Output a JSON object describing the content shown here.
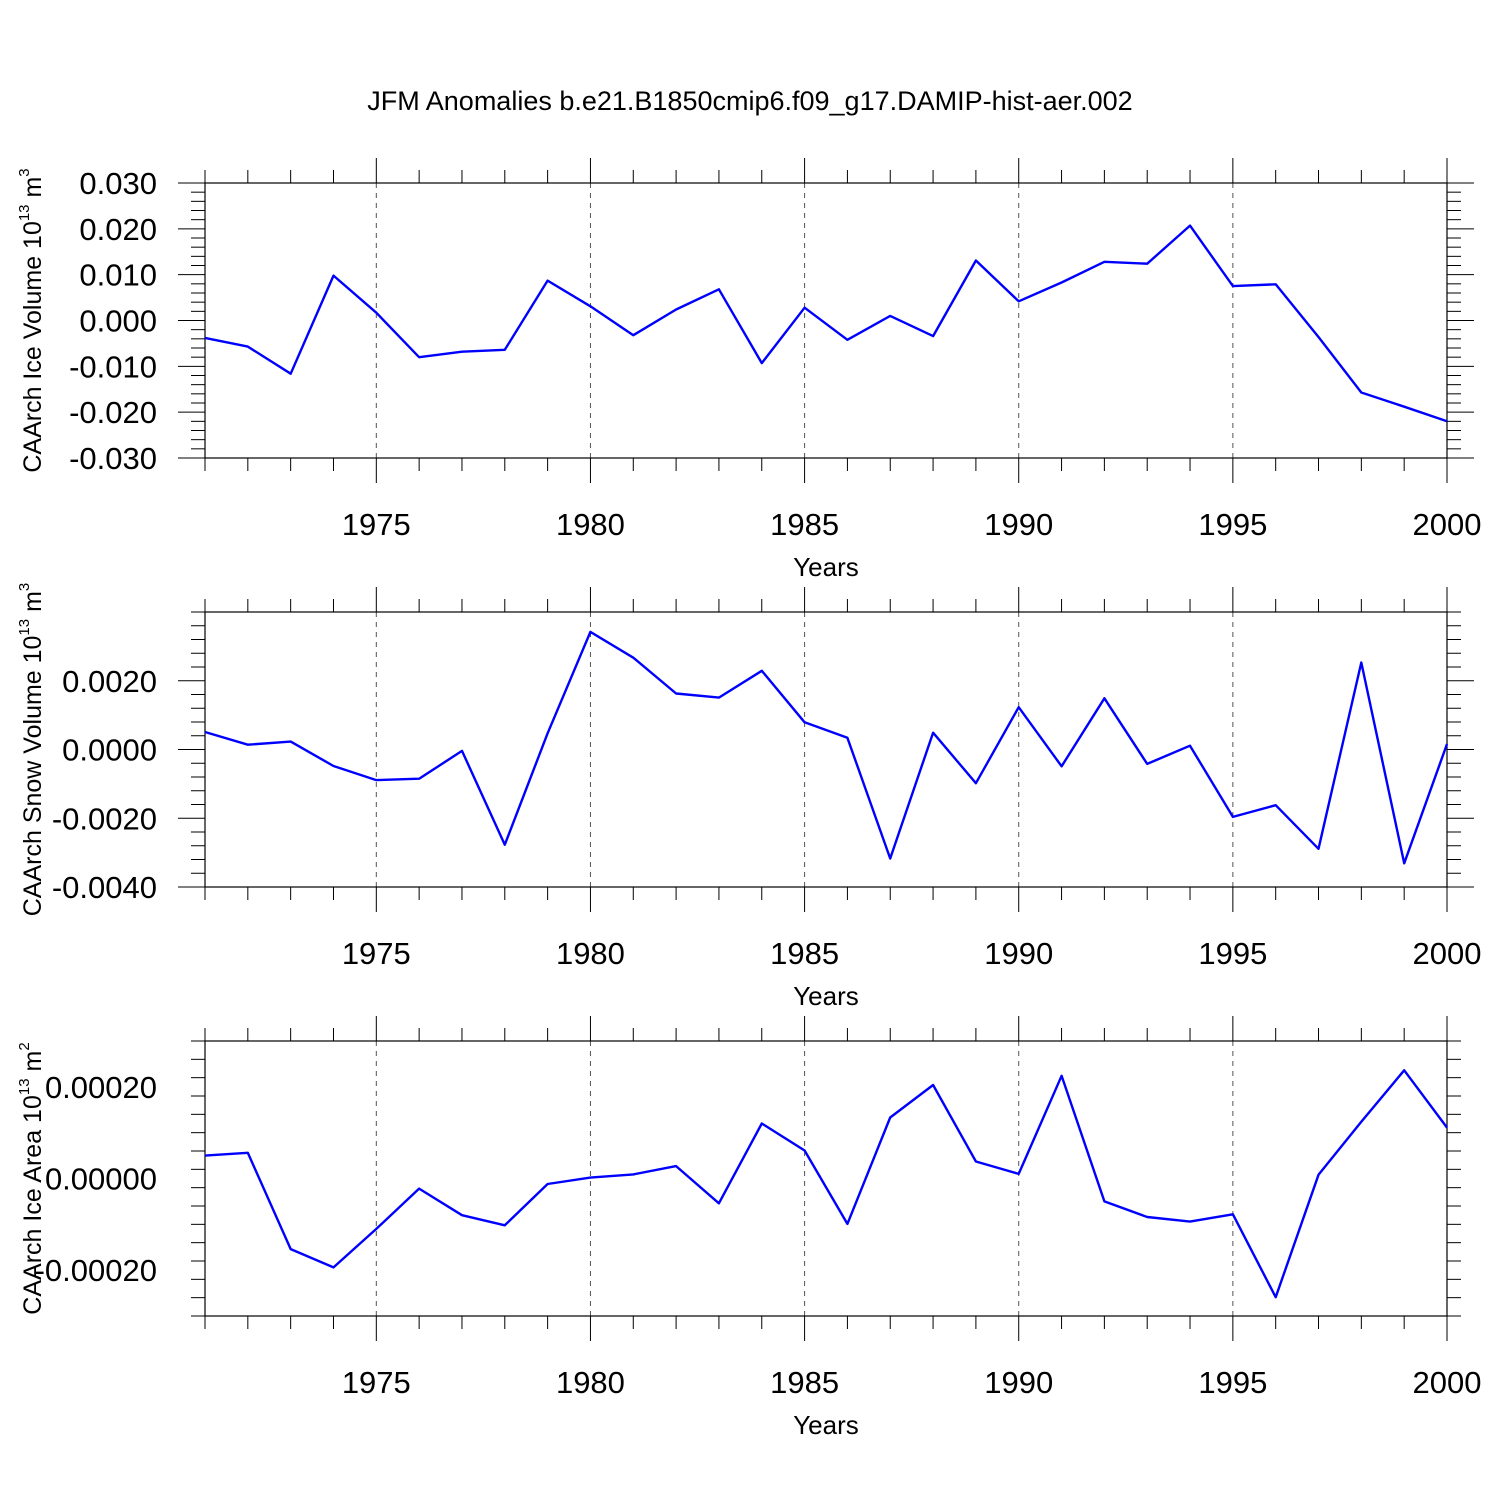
{
  "title": "JFM Anomalies b.e21.B1850cmip6.f09_g17.DAMIP-hist-aer.002",
  "chart_data": [
    {
      "type": "line",
      "title": "JFM Anomalies b.e21.B1850cmip6.f09_g17.DAMIP-hist-aer.002",
      "xlabel": "Years",
      "ylabel": "CAArch Ice Volume 10",
      "ylabel_exp": "13",
      "ylabel_unit": "m",
      "ylabel_unit_exp": "3",
      "xlim": [
        1971,
        2000
      ],
      "ylim": [
        -0.03,
        0.03
      ],
      "x_ticks": [
        "1975",
        "1980",
        "1985",
        "1990",
        "1995",
        "2000"
      ],
      "y_ticks": [
        {
          "value": -0.03,
          "label": "-0.030"
        },
        {
          "value": -0.02,
          "label": "-0.020"
        },
        {
          "value": -0.01,
          "label": "-0.010"
        },
        {
          "value": 0.0,
          "label": "0.000"
        },
        {
          "value": 0.01,
          "label": "0.010"
        },
        {
          "value": 0.02,
          "label": "0.020"
        },
        {
          "value": 0.03,
          "label": "0.030"
        }
      ],
      "grid": "dashed vertical at major x ticks",
      "line_color": "#0000ff",
      "series": [
        {
          "name": "CAArch Ice Volume",
          "x": [
            1971,
            1972,
            1973,
            1974,
            1975,
            1976,
            1977,
            1978,
            1979,
            1980,
            1981,
            1982,
            1983,
            1984,
            1985,
            1986,
            1987,
            1988,
            1989,
            1990,
            1991,
            1992,
            1993,
            1994,
            1995,
            1996,
            1997,
            1998,
            1999,
            2000
          ],
          "values": [
            -0.0038,
            -0.0057,
            -0.0116,
            0.0098,
            0.0017,
            -0.008,
            -0.0068,
            -0.0064,
            0.0087,
            0.0031,
            -0.0032,
            0.0024,
            0.0068,
            -0.0093,
            0.0028,
            -0.0042,
            0.001,
            -0.0034,
            0.0131,
            0.0042,
            0.0083,
            0.0128,
            0.0124,
            0.0207,
            0.0075,
            0.0079,
            -0.0036,
            -0.0157,
            -0.0188,
            -0.022
          ]
        }
      ]
    },
    {
      "type": "line",
      "xlabel": "Years",
      "ylabel": "CAArch Snow Volume 10",
      "ylabel_exp": "13",
      "ylabel_unit": "m",
      "ylabel_unit_exp": "3",
      "xlim": [
        1971,
        2000
      ],
      "ylim": [
        -0.004,
        0.004
      ],
      "x_ticks": [
        "1975",
        "1980",
        "1985",
        "1990",
        "1995",
        "2000"
      ],
      "y_ticks": [
        {
          "value": -0.004,
          "label": "-0.0040"
        },
        {
          "value": -0.002,
          "label": "-0.0020"
        },
        {
          "value": 0.0,
          "label": "0.0000"
        },
        {
          "value": 0.002,
          "label": "0.0020"
        }
      ],
      "grid": "dashed vertical at major x ticks",
      "line_color": "#0000ff",
      "series": [
        {
          "name": "CAArch Snow Volume",
          "x": [
            1971,
            1972,
            1973,
            1974,
            1975,
            1976,
            1977,
            1978,
            1979,
            1980,
            1981,
            1982,
            1983,
            1984,
            1985,
            1986,
            1987,
            1988,
            1989,
            1990,
            1991,
            1992,
            1993,
            1994,
            1995,
            1996,
            1997,
            1998,
            1999,
            2000
          ],
          "values": [
            0.00051,
            0.00014,
            0.00023,
            -0.00048,
            -0.00089,
            -0.00085,
            -4e-05,
            -0.00277,
            0.00047,
            0.00342,
            0.00267,
            0.00163,
            0.00151,
            0.00229,
            0.00079,
            0.00034,
            -0.00317,
            0.00049,
            -0.00098,
            0.00123,
            -0.00049,
            0.00149,
            -0.00042,
            0.00011,
            -0.00196,
            -0.00162,
            -0.00289,
            0.00253,
            -0.00331,
            0.00016
          ]
        }
      ]
    },
    {
      "type": "line",
      "xlabel": "Years",
      "ylabel": "CAArch Ice Area 10",
      "ylabel_exp": "13",
      "ylabel_unit": "m",
      "ylabel_unit_exp": "2",
      "xlim": [
        1971,
        2000
      ],
      "ylim": [
        -0.0003,
        0.0003
      ],
      "x_ticks": [
        "1975",
        "1980",
        "1985",
        "1990",
        "1995",
        "2000"
      ],
      "y_ticks": [
        {
          "value": -0.0002,
          "label": "-0.00020"
        },
        {
          "value": 0.0,
          "label": "0.00000"
        },
        {
          "value": 0.0002,
          "label": "0.00020"
        }
      ],
      "grid": "dashed vertical at major x ticks",
      "line_color": "#0000ff",
      "series": [
        {
          "name": "CAArch Ice Area",
          "x": [
            1971,
            1972,
            1973,
            1974,
            1975,
            1976,
            1977,
            1978,
            1979,
            1980,
            1981,
            1982,
            1983,
            1984,
            1985,
            1986,
            1987,
            1988,
            1989,
            1990,
            1991,
            1992,
            1993,
            1994,
            1995,
            1996,
            1997,
            1998,
            1999,
            2000
          ],
          "values": [
            5e-05,
            5.6e-05,
            -0.000154,
            -0.000194,
            -0.00011,
            -2.2e-05,
            -8e-05,
            -0.000102,
            -1.2e-05,
            2e-06,
            9e-06,
            2.7e-05,
            -5.4e-05,
            0.00012,
            6.1e-05,
            -9.9e-05,
            0.000133,
            0.000204,
            3.7e-05,
            1e-05,
            0.000224,
            -5e-05,
            -8.4e-05,
            -9.4e-05,
            -7.8e-05,
            -0.000259,
            8e-06,
            0.000124,
            0.000236,
            0.000111
          ]
        }
      ]
    }
  ]
}
